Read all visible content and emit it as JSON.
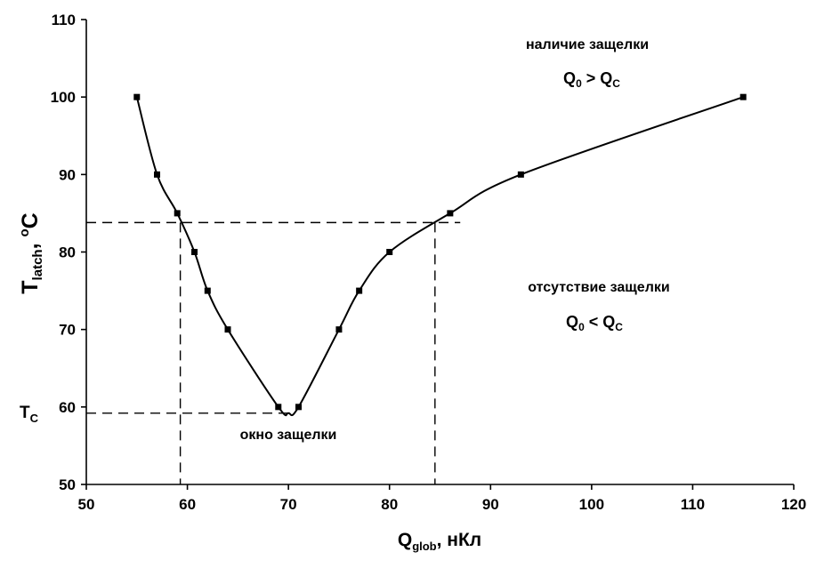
{
  "chart_data": {
    "type": "line",
    "title": "",
    "xlim": [
      50,
      120
    ],
    "ylim": [
      50,
      110
    ],
    "xticks": [
      50,
      60,
      70,
      80,
      90,
      100,
      110,
      120
    ],
    "yticks": [
      50,
      60,
      70,
      80,
      90,
      100,
      110
    ],
    "xlabel": {
      "main": "Q",
      "sub": "glob",
      "rest": ", нКл"
    },
    "ylabel": {
      "main": "T",
      "sub": "latch",
      "rest": ", ",
      "sup": "o",
      "unit": "C"
    },
    "grid": false,
    "series": [
      {
        "marker": "square",
        "color": "#000000",
        "points": [
          {
            "x": 55,
            "y": 100
          },
          {
            "x": 57,
            "y": 90
          },
          {
            "x": 59,
            "y": 85
          },
          {
            "x": 60.7,
            "y": 80
          },
          {
            "x": 62,
            "y": 75
          },
          {
            "x": 64,
            "y": 70
          },
          {
            "x": 69,
            "y": 60
          },
          {
            "x": 71,
            "y": 60
          },
          {
            "x": 75,
            "y": 70
          },
          {
            "x": 77,
            "y": 75
          },
          {
            "x": 80,
            "y": 80
          },
          {
            "x": 86,
            "y": 85
          },
          {
            "x": 93,
            "y": 90
          },
          {
            "x": 115,
            "y": 100
          }
        ]
      }
    ],
    "curve_min": {
      "x": 70,
      "y": 59.2
    },
    "reference_lines": {
      "latch_temp": 83.8,
      "tc": 59.2,
      "q_left": 59.3,
      "q_right": 84.5,
      "h_end": 87
    },
    "tc_label": {
      "main": "T",
      "sub": "C"
    },
    "annotations": {
      "top_title": "наличие защелки",
      "top_formula": {
        "a": "Q",
        "a_sub": "0",
        "op": " > ",
        "b": "Q",
        "b_sub": "C"
      },
      "right_title": "отсутствие защелки",
      "right_formula": {
        "a": "Q",
        "a_sub": "0",
        "op": " < ",
        "b": "Q",
        "b_sub": "C"
      },
      "window_label": "окно защелки"
    }
  }
}
